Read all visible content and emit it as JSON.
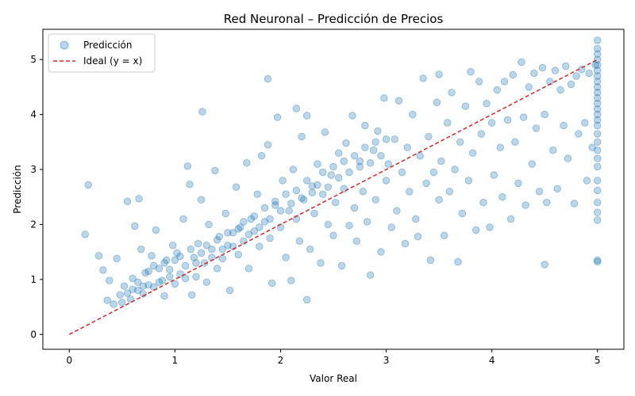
{
  "chart_data": {
    "type": "scatter",
    "title": "Red Neuronal – Predicción de Precios",
    "xlabel": "Valor Real",
    "ylabel": "Predicción",
    "xlim": [
      -0.25,
      5.25
    ],
    "ylim": [
      -0.27,
      5.55
    ],
    "xticks": [
      0,
      1,
      2,
      3,
      4,
      5
    ],
    "yticks": [
      0,
      1,
      2,
      3,
      4,
      5
    ],
    "grid": false,
    "legend_position": "top-left",
    "colors": {
      "points": "#1f77b4",
      "ideal": "#d62728"
    },
    "series": [
      {
        "name": "Predicción",
        "kind": "scatter",
        "points": [
          [
            0.15,
            1.82
          ],
          [
            0.18,
            2.72
          ],
          [
            0.28,
            1.43
          ],
          [
            0.32,
            1.17
          ],
          [
            0.36,
            0.62
          ],
          [
            0.38,
            0.98
          ],
          [
            0.42,
            0.55
          ],
          [
            0.45,
            1.38
          ],
          [
            0.48,
            0.72
          ],
          [
            0.5,
            0.58
          ],
          [
            0.52,
            0.88
          ],
          [
            0.55,
            2.42
          ],
          [
            0.58,
            0.64
          ],
          [
            0.6,
            1.02
          ],
          [
            0.62,
            1.97
          ],
          [
            0.65,
            0.8
          ],
          [
            0.66,
            2.47
          ],
          [
            0.68,
            1.55
          ],
          [
            0.7,
            0.74
          ],
          [
            0.72,
            1.12
          ],
          [
            0.75,
            0.9
          ],
          [
            0.78,
            1.43
          ],
          [
            0.8,
            0.86
          ],
          [
            0.82,
            1.9
          ],
          [
            0.85,
            1.2
          ],
          [
            0.88,
            0.98
          ],
          [
            0.9,
            0.7
          ],
          [
            0.92,
            1.35
          ],
          [
            0.95,
            1.05
          ],
          [
            0.98,
            1.62
          ],
          [
            1.0,
            0.92
          ],
          [
            1.02,
            1.48
          ],
          [
            1.05,
            1.1
          ],
          [
            1.08,
            2.1
          ],
          [
            1.1,
            1.25
          ],
          [
            1.12,
            3.06
          ],
          [
            1.14,
            2.73
          ],
          [
            1.16,
            0.72
          ],
          [
            1.18,
            1.4
          ],
          [
            1.2,
            1.05
          ],
          [
            1.22,
            1.65
          ],
          [
            1.25,
            2.45
          ],
          [
            1.26,
            4.05
          ],
          [
            1.28,
            1.3
          ],
          [
            1.3,
            0.95
          ],
          [
            1.32,
            2.0
          ],
          [
            1.35,
            1.55
          ],
          [
            1.38,
            2.98
          ],
          [
            1.4,
            1.2
          ],
          [
            1.42,
            1.78
          ],
          [
            1.45,
            1.38
          ],
          [
            1.48,
            2.2
          ],
          [
            1.5,
            1.62
          ],
          [
            1.52,
            0.8
          ],
          [
            1.55,
            1.85
          ],
          [
            1.58,
            2.68
          ],
          [
            1.6,
            1.45
          ],
          [
            1.62,
            1.95
          ],
          [
            1.65,
            1.7
          ],
          [
            1.68,
            3.12
          ],
          [
            1.7,
            1.2
          ],
          [
            1.72,
            2.1
          ],
          [
            1.75,
            1.88
          ],
          [
            1.78,
            2.55
          ],
          [
            1.8,
            1.6
          ],
          [
            1.82,
            3.25
          ],
          [
            1.85,
            2.05
          ],
          [
            1.88,
            4.65
          ],
          [
            1.88,
            3.45
          ],
          [
            1.9,
            1.75
          ],
          [
            1.92,
            0.93
          ],
          [
            1.95,
            2.35
          ],
          [
            1.97,
            3.95
          ],
          [
            2.0,
            1.95
          ],
          [
            2.02,
            2.8
          ],
          [
            2.05,
            1.4
          ],
          [
            2.08,
            2.25
          ],
          [
            2.1,
            0.98
          ],
          [
            2.12,
            3.0
          ],
          [
            2.15,
            4.11
          ],
          [
            2.15,
            2.1
          ],
          [
            2.18,
            1.7
          ],
          [
            2.2,
            3.6
          ],
          [
            2.22,
            2.45
          ],
          [
            2.25,
            3.98
          ],
          [
            2.25,
            0.63
          ],
          [
            2.28,
            1.55
          ],
          [
            2.3,
            2.7
          ],
          [
            2.32,
            2.2
          ],
          [
            2.35,
            3.1
          ],
          [
            2.38,
            1.3
          ],
          [
            2.4,
            2.55
          ],
          [
            2.42,
            3.68
          ],
          [
            2.45,
            2.0
          ],
          [
            2.48,
            2.9
          ],
          [
            2.5,
            1.8
          ],
          [
            2.52,
            2.4
          ],
          [
            2.55,
            3.3
          ],
          [
            2.58,
            1.25
          ],
          [
            2.6,
            2.65
          ],
          [
            2.62,
            3.48
          ],
          [
            2.65,
            1.98
          ],
          [
            2.68,
            3.98
          ],
          [
            2.7,
            2.3
          ],
          [
            2.72,
            1.7
          ],
          [
            2.75,
            3.15
          ],
          [
            2.78,
            2.6
          ],
          [
            2.8,
            3.8
          ],
          [
            2.82,
            2.05
          ],
          [
            2.85,
            1.08
          ],
          [
            2.88,
            3.35
          ],
          [
            2.9,
            2.45
          ],
          [
            2.92,
            3.7
          ],
          [
            2.95,
            1.5
          ],
          [
            2.98,
            4.3
          ],
          [
            3.0,
            2.8
          ],
          [
            3.02,
            3.1
          ],
          [
            3.05,
            1.95
          ],
          [
            3.08,
            3.55
          ],
          [
            3.1,
            2.25
          ],
          [
            3.12,
            4.25
          ],
          [
            3.15,
            2.95
          ],
          [
            3.18,
            1.65
          ],
          [
            3.2,
            3.4
          ],
          [
            3.22,
            2.6
          ],
          [
            3.25,
            4.0
          ],
          [
            3.28,
            2.1
          ],
          [
            3.3,
            1.78
          ],
          [
            3.32,
            3.25
          ],
          [
            3.35,
            4.66
          ],
          [
            3.38,
            2.75
          ],
          [
            3.4,
            3.6
          ],
          [
            3.42,
            1.35
          ],
          [
            3.45,
            2.95
          ],
          [
            3.48,
            4.22
          ],
          [
            3.5,
            2.45
          ],
          [
            3.5,
            4.73
          ],
          [
            3.52,
            3.15
          ],
          [
            3.55,
            1.8
          ],
          [
            3.58,
            3.85
          ],
          [
            3.6,
            2.6
          ],
          [
            3.62,
            4.4
          ],
          [
            3.65,
            3.0
          ],
          [
            3.68,
            1.32
          ],
          [
            3.7,
            3.5
          ],
          [
            3.72,
            2.2
          ],
          [
            3.75,
            4.15
          ],
          [
            3.78,
            2.8
          ],
          [
            3.8,
            4.78
          ],
          [
            3.82,
            3.3
          ],
          [
            3.85,
            1.9
          ],
          [
            3.88,
            4.6
          ],
          [
            3.9,
            3.65
          ],
          [
            3.92,
            2.4
          ],
          [
            3.95,
            4.2
          ],
          [
            3.98,
            1.95
          ],
          [
            4.0,
            3.85
          ],
          [
            4.02,
            2.9
          ],
          [
            4.05,
            4.45
          ],
          [
            4.08,
            3.4
          ],
          [
            4.1,
            2.5
          ],
          [
            4.12,
            4.6
          ],
          [
            4.15,
            3.9
          ],
          [
            4.18,
            2.1
          ],
          [
            4.2,
            4.72
          ],
          [
            4.22,
            3.5
          ],
          [
            4.25,
            2.75
          ],
          [
            4.28,
            4.95
          ],
          [
            4.3,
            3.95
          ],
          [
            4.32,
            2.35
          ],
          [
            4.35,
            4.5
          ],
          [
            4.38,
            3.1
          ],
          [
            4.4,
            4.75
          ],
          [
            4.42,
            3.75
          ],
          [
            4.45,
            2.6
          ],
          [
            4.48,
            4.85
          ],
          [
            4.5,
            1.27
          ],
          [
            4.5,
            4.0
          ],
          [
            4.52,
            2.4
          ],
          [
            4.55,
            4.6
          ],
          [
            4.58,
            3.35
          ],
          [
            4.6,
            4.8
          ],
          [
            4.62,
            2.65
          ],
          [
            4.65,
            4.45
          ],
          [
            4.68,
            3.8
          ],
          [
            4.7,
            4.88
          ],
          [
            4.72,
            3.2
          ],
          [
            4.75,
            4.55
          ],
          [
            4.78,
            2.38
          ],
          [
            4.8,
            4.7
          ],
          [
            4.82,
            3.65
          ],
          [
            4.85,
            4.82
          ],
          [
            4.88,
            3.85
          ],
          [
            4.9,
            2.8
          ],
          [
            4.92,
            4.75
          ],
          [
            4.95,
            3.4
          ],
          [
            4.98,
            4.9
          ],
          [
            5.0,
            5.35
          ],
          [
            5.0,
            5.2
          ],
          [
            5.0,
            5.1
          ],
          [
            5.0,
            5.0
          ],
          [
            5.0,
            4.9
          ],
          [
            5.0,
            4.8
          ],
          [
            5.0,
            4.7
          ],
          [
            5.0,
            4.6
          ],
          [
            5.0,
            4.5
          ],
          [
            5.0,
            4.4
          ],
          [
            5.0,
            4.3
          ],
          [
            5.0,
            4.2
          ],
          [
            5.0,
            4.1
          ],
          [
            5.0,
            4.0
          ],
          [
            5.0,
            3.9
          ],
          [
            5.0,
            3.8
          ],
          [
            5.0,
            3.65
          ],
          [
            5.0,
            3.5
          ],
          [
            5.0,
            3.35
          ],
          [
            5.0,
            3.2
          ],
          [
            5.0,
            3.05
          ],
          [
            5.0,
            2.8
          ],
          [
            5.0,
            2.62
          ],
          [
            5.0,
            2.4
          ],
          [
            5.0,
            2.22
          ],
          [
            5.0,
            2.08
          ],
          [
            5.0,
            1.35
          ],
          [
            5.0,
            1.32
          ],
          [
            0.55,
            0.75
          ],
          [
            0.6,
            0.82
          ],
          [
            0.65,
            0.95
          ],
          [
            0.7,
            0.88
          ],
          [
            0.75,
            1.15
          ],
          [
            0.8,
            1.25
          ],
          [
            0.85,
            0.95
          ],
          [
            0.9,
            1.3
          ],
          [
            0.95,
            1.18
          ],
          [
            1.0,
            1.35
          ],
          [
            1.05,
            1.42
          ],
          [
            1.1,
            1.02
          ],
          [
            1.15,
            1.55
          ],
          [
            1.2,
            1.3
          ],
          [
            1.25,
            1.48
          ],
          [
            1.3,
            1.62
          ],
          [
            1.35,
            1.4
          ],
          [
            1.4,
            1.72
          ],
          [
            1.45,
            1.55
          ],
          [
            1.5,
            1.85
          ],
          [
            1.55,
            1.6
          ],
          [
            1.6,
            1.92
          ],
          [
            1.65,
            2.05
          ],
          [
            1.7,
            1.82
          ],
          [
            1.75,
            2.15
          ],
          [
            1.8,
            1.95
          ],
          [
            1.85,
            2.3
          ],
          [
            1.9,
            2.1
          ],
          [
            1.95,
            2.42
          ],
          [
            2.0,
            2.25
          ],
          [
            2.05,
            2.55
          ],
          [
            2.1,
            2.38
          ],
          [
            2.15,
            2.62
          ],
          [
            2.2,
            2.48
          ],
          [
            2.25,
            2.8
          ],
          [
            2.3,
            2.58
          ],
          [
            2.35,
            2.72
          ],
          [
            2.4,
            2.95
          ],
          [
            2.45,
            2.68
          ],
          [
            2.5,
            3.05
          ],
          [
            2.55,
            2.85
          ],
          [
            2.6,
            3.15
          ],
          [
            2.65,
            2.95
          ],
          [
            2.7,
            3.25
          ],
          [
            2.75,
            3.05
          ],
          [
            2.8,
            3.4
          ],
          [
            2.85,
            3.12
          ],
          [
            2.9,
            3.5
          ],
          [
            2.95,
            3.25
          ],
          [
            3.0,
            3.55
          ]
        ]
      },
      {
        "name": "Ideal (y = x)",
        "kind": "line",
        "x": [
          0,
          5
        ],
        "y": [
          0,
          5
        ]
      }
    ]
  }
}
